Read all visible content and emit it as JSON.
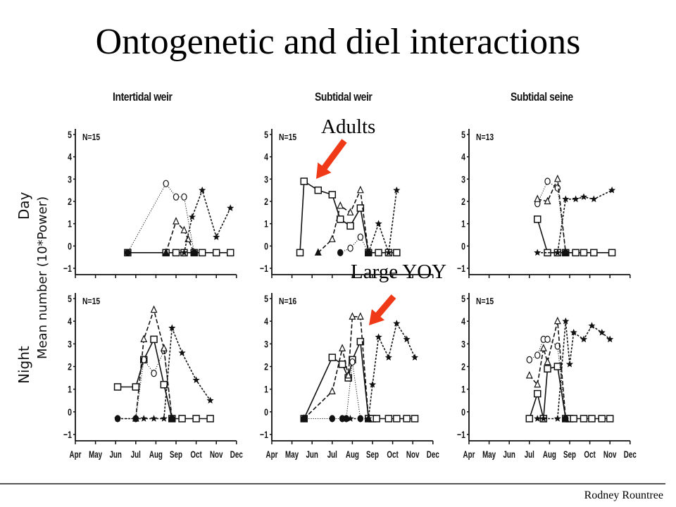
{
  "slide": {
    "title": "Ontogenetic and diel interactions",
    "footer": "Rodney Rountree",
    "annotations": {
      "adults": "Adults",
      "large_yoy": "Large YOY",
      "arrow_color": "#f03a17"
    }
  },
  "axes": {
    "ylabel": "Mean number (10*Power)",
    "row_labels": [
      "Day",
      "Night"
    ],
    "column_titles": [
      "Intertidal weir",
      "Subtidal weir",
      "Subtidal seine"
    ],
    "yticks": [
      "5",
      "4",
      "3",
      "2",
      "1",
      "0",
      "−1"
    ],
    "xticks": [
      "Apr",
      "May",
      "Jun",
      "Jul",
      "Aug",
      "Sep",
      "Oct",
      "Nov",
      "Dec"
    ]
  },
  "chart_data": [
    {
      "type": "line",
      "panel": "Intertidal weir - Day",
      "n_label": "N=15",
      "ylim": [
        -1,
        5
      ],
      "xlim": [
        "Apr",
        "Dec"
      ],
      "series": [
        {
          "name": "open-square",
          "style": "solid",
          "points": [
            [
              2.6,
              -0.3
            ],
            [
              4.5,
              -0.3
            ],
            [
              5.0,
              -0.3
            ],
            [
              5.4,
              -0.3
            ],
            [
              5.9,
              -0.3
            ],
            [
              6.3,
              -0.3
            ],
            [
              7.0,
              -0.3
            ],
            [
              7.7,
              -0.3
            ]
          ]
        },
        {
          "name": "circle",
          "style": "dotted",
          "points": [
            [
              2.6,
              -0.3
            ],
            [
              4.5,
              2.8
            ],
            [
              5.0,
              2.2
            ],
            [
              5.4,
              2.2
            ],
            [
              5.9,
              -0.3
            ]
          ]
        },
        {
          "name": "triangle",
          "style": "dashed",
          "points": [
            [
              4.5,
              -0.3
            ],
            [
              5.0,
              1.1
            ],
            [
              5.4,
              0.7
            ],
            [
              5.6,
              0.3
            ],
            [
              5.9,
              -0.3
            ]
          ]
        },
        {
          "name": "star",
          "style": "short-dash",
          "points": [
            [
              5.4,
              -0.3
            ],
            [
              5.8,
              1.3
            ],
            [
              6.3,
              2.5
            ],
            [
              7.0,
              0.4
            ],
            [
              7.7,
              1.7
            ]
          ]
        }
      ]
    },
    {
      "type": "line",
      "panel": "Subtidal weir - Day",
      "n_label": "N=15",
      "ylim": [
        -1,
        5
      ],
      "xlim": [
        "Apr",
        "Dec"
      ],
      "series": [
        {
          "name": "open-square",
          "style": "solid",
          "points": [
            [
              1.4,
              -0.3
            ],
            [
              1.6,
              2.9
            ],
            [
              2.3,
              2.5
            ],
            [
              3.0,
              2.3
            ],
            [
              3.4,
              1.2
            ],
            [
              3.9,
              0.9
            ],
            [
              4.4,
              1.7
            ],
            [
              4.8,
              -0.3
            ],
            [
              5.3,
              -0.3
            ],
            [
              5.8,
              -0.3
            ],
            [
              6.2,
              -0.3
            ]
          ]
        },
        {
          "name": "triangle",
          "style": "dashed",
          "points": [
            [
              2.3,
              -0.3
            ],
            [
              3.0,
              0.3
            ],
            [
              3.4,
              1.8
            ],
            [
              3.9,
              1.5
            ],
            [
              4.4,
              2.5
            ],
            [
              4.8,
              -0.3
            ]
          ]
        },
        {
          "name": "circle",
          "style": "dotted",
          "points": [
            [
              3.4,
              -0.3
            ],
            [
              3.9,
              -0.1
            ],
            [
              4.4,
              0.4
            ],
            [
              4.8,
              -0.3
            ]
          ]
        },
        {
          "name": "star",
          "style": "short-dash",
          "points": [
            [
              4.8,
              -0.3
            ],
            [
              5.3,
              1.0
            ],
            [
              5.8,
              -0.3
            ],
            [
              6.2,
              2.5
            ]
          ]
        }
      ]
    },
    {
      "type": "line",
      "panel": "Subtidal seine - Day",
      "n_label": "N=13",
      "ylim": [
        -1,
        5
      ],
      "xlim": [
        "Apr",
        "Dec"
      ],
      "series": [
        {
          "name": "open-square",
          "style": "solid",
          "points": [
            [
              3.4,
              1.2
            ],
            [
              3.9,
              -0.3
            ],
            [
              4.4,
              -0.3
            ],
            [
              4.8,
              -0.3
            ],
            [
              5.3,
              -0.3
            ],
            [
              5.7,
              -0.3
            ],
            [
              6.2,
              -0.3
            ],
            [
              7.1,
              -0.3
            ]
          ]
        },
        {
          "name": "circle",
          "style": "dotted",
          "points": [
            [
              3.4,
              1.9
            ],
            [
              3.9,
              2.9
            ],
            [
              4.4,
              2.6
            ],
            [
              4.8,
              -0.3
            ]
          ]
        },
        {
          "name": "triangle",
          "style": "dashed",
          "points": [
            [
              3.4,
              2.1
            ],
            [
              3.9,
              2.0
            ],
            [
              4.4,
              3.0
            ],
            [
              4.8,
              -0.3
            ]
          ]
        },
        {
          "name": "star",
          "style": "short-dash",
          "points": [
            [
              3.4,
              -0.3
            ],
            [
              4.4,
              -0.3
            ],
            [
              4.8,
              2.1
            ],
            [
              5.3,
              2.1
            ],
            [
              5.7,
              2.2
            ],
            [
              6.2,
              2.1
            ],
            [
              7.1,
              2.5
            ]
          ]
        }
      ]
    },
    {
      "type": "line",
      "panel": "Intertidal weir - Night",
      "n_label": "N=15",
      "ylim": [
        -1,
        5
      ],
      "xlim": [
        "Apr",
        "Dec"
      ],
      "series": [
        {
          "name": "open-square",
          "style": "solid",
          "points": [
            [
              2.1,
              1.1
            ],
            [
              3.0,
              1.1
            ],
            [
              3.4,
              2.3
            ],
            [
              3.9,
              3.2
            ],
            [
              4.4,
              1.2
            ],
            [
              4.8,
              -0.3
            ],
            [
              5.3,
              -0.3
            ],
            [
              6.0,
              -0.3
            ],
            [
              6.7,
              -0.3
            ]
          ]
        },
        {
          "name": "circle",
          "style": "dotted",
          "points": [
            [
              2.1,
              -0.3
            ],
            [
              3.0,
              -0.3
            ],
            [
              3.4,
              2.3
            ],
            [
              3.9,
              1.7
            ],
            [
              4.4,
              2.7
            ],
            [
              4.8,
              -0.3
            ]
          ]
        },
        {
          "name": "triangle",
          "style": "dashed",
          "points": [
            [
              3.0,
              -0.3
            ],
            [
              3.4,
              3.2
            ],
            [
              3.9,
              4.5
            ],
            [
              4.4,
              2.8
            ],
            [
              4.8,
              -0.3
            ]
          ]
        },
        {
          "name": "star",
          "style": "short-dash",
          "points": [
            [
              2.1,
              -0.3
            ],
            [
              3.0,
              -0.3
            ],
            [
              3.4,
              -0.3
            ],
            [
              3.9,
              -0.3
            ],
            [
              4.4,
              -0.3
            ],
            [
              4.8,
              3.7
            ],
            [
              5.3,
              2.6
            ],
            [
              6.0,
              1.4
            ],
            [
              6.7,
              0.5
            ]
          ]
        }
      ]
    },
    {
      "type": "line",
      "panel": "Subtidal weir - Night",
      "n_label": "N=16",
      "ylim": [
        -1,
        5
      ],
      "xlim": [
        "Apr",
        "Dec"
      ],
      "series": [
        {
          "name": "open-square",
          "style": "solid",
          "points": [
            [
              1.6,
              -0.3
            ],
            [
              3.0,
              2.4
            ],
            [
              3.5,
              2.1
            ],
            [
              3.8,
              1.5
            ],
            [
              4.0,
              2.3
            ],
            [
              4.4,
              3.1
            ],
            [
              4.8,
              -0.3
            ],
            [
              5.0,
              -0.3
            ],
            [
              5.2,
              -0.3
            ],
            [
              5.8,
              -0.3
            ],
            [
              6.2,
              -0.3
            ],
            [
              6.7,
              -0.3
            ],
            [
              7.1,
              -0.3
            ]
          ]
        },
        {
          "name": "triangle",
          "style": "dashed",
          "points": [
            [
              1.6,
              -0.3
            ],
            [
              3.0,
              0.9
            ],
            [
              3.5,
              2.8
            ],
            [
              3.8,
              1.6
            ],
            [
              4.0,
              4.2
            ],
            [
              4.4,
              4.2
            ],
            [
              4.8,
              -0.3
            ]
          ]
        },
        {
          "name": "circle",
          "style": "dotted",
          "points": [
            [
              1.6,
              -0.3
            ],
            [
              3.0,
              -0.3
            ],
            [
              3.5,
              -0.3
            ],
            [
              3.7,
              -0.3
            ],
            [
              4.0,
              2.2
            ],
            [
              4.4,
              -0.3
            ]
          ]
        },
        {
          "name": "star",
          "style": "short-dash",
          "points": [
            [
              3.9,
              -0.3
            ],
            [
              4.8,
              -0.3
            ],
            [
              5.0,
              1.2
            ],
            [
              5.3,
              3.3
            ],
            [
              5.8,
              2.4
            ],
            [
              6.2,
              3.9
            ],
            [
              6.7,
              3.2
            ],
            [
              7.1,
              2.4
            ]
          ]
        }
      ]
    },
    {
      "type": "line",
      "panel": "Subtidal seine - Night",
      "n_label": "N=15",
      "ylim": [
        -1,
        5
      ],
      "xlim": [
        "Apr",
        "Dec"
      ],
      "series": [
        {
          "name": "open-square",
          "style": "solid",
          "points": [
            [
              3.0,
              -0.3
            ],
            [
              3.4,
              0.8
            ],
            [
              3.7,
              -0.3
            ],
            [
              3.9,
              1.9
            ],
            [
              4.4,
              2.0
            ],
            [
              4.8,
              -0.3
            ],
            [
              5.0,
              -0.3
            ],
            [
              5.2,
              -0.3
            ],
            [
              5.7,
              -0.3
            ],
            [
              6.1,
              -0.3
            ],
            [
              6.6,
              -0.3
            ],
            [
              7.0,
              -0.3
            ]
          ]
        },
        {
          "name": "circle",
          "style": "dotted",
          "points": [
            [
              3.0,
              2.3
            ],
            [
              3.4,
              2.5
            ],
            [
              3.7,
              3.2
            ],
            [
              3.9,
              3.2
            ],
            [
              4.4,
              2.9
            ],
            [
              4.8,
              -0.3
            ]
          ]
        },
        {
          "name": "triangle",
          "style": "dashed",
          "points": [
            [
              3.0,
              1.6
            ],
            [
              3.4,
              1.2
            ],
            [
              3.7,
              2.8
            ],
            [
              3.9,
              2.2
            ],
            [
              4.4,
              4.0
            ],
            [
              4.8,
              -0.3
            ]
          ]
        },
        {
          "name": "star",
          "style": "short-dash",
          "points": [
            [
              3.4,
              -0.3
            ],
            [
              3.7,
              -0.3
            ],
            [
              4.4,
              -0.3
            ],
            [
              4.8,
              4.0
            ],
            [
              5.0,
              2.1
            ],
            [
              5.2,
              3.5
            ],
            [
              5.7,
              3.2
            ],
            [
              6.1,
              3.8
            ],
            [
              6.6,
              3.5
            ],
            [
              7.0,
              3.2
            ]
          ]
        }
      ]
    }
  ]
}
